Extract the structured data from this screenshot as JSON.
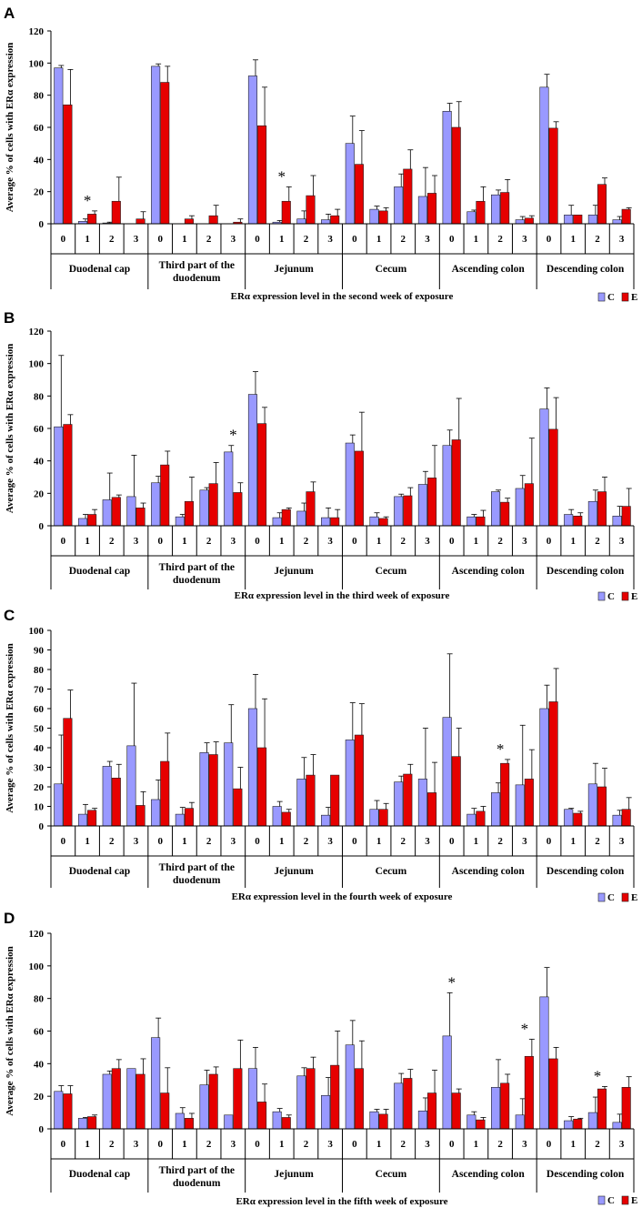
{
  "series_meta": [
    {
      "key": "C",
      "label": "C",
      "color": "#9999ff"
    },
    {
      "key": "E",
      "label": "E",
      "color": "#e60000"
    }
  ],
  "y_axis_title": "Average % of cells with ERα expression",
  "levels": [
    "0",
    "1",
    "2",
    "3"
  ],
  "regions": [
    [
      "Duodenal cap"
    ],
    [
      "Third part of the",
      "duodenum"
    ],
    [
      "Jejunum"
    ],
    [
      "Cecum"
    ],
    [
      "Ascending colon"
    ],
    [
      "Descending colon"
    ]
  ],
  "chart_data": [
    {
      "type": "bar",
      "panel": "A",
      "xlabel": "ERα expression level in the second week of exposure",
      "ylim": [
        0,
        120
      ],
      "yticks": [
        0,
        20,
        40,
        60,
        80,
        100,
        120
      ],
      "categories": [
        "0",
        "1",
        "2",
        "3",
        "0",
        "1",
        "2",
        "3",
        "0",
        "1",
        "2",
        "3",
        "0",
        "1",
        "2",
        "3",
        "0",
        "1",
        "2",
        "3",
        "0",
        "1",
        "2",
        "3"
      ],
      "series": [
        {
          "name": "C",
          "values": [
            97,
            1.5,
            0.5,
            0,
            98,
            0,
            0,
            0,
            92,
            1,
            3,
            2.5,
            50,
            9,
            23,
            17,
            70,
            7.5,
            18,
            2.5,
            85,
            5.5,
            5.5,
            2.5
          ],
          "errors": [
            1.5,
            1.5,
            0.5,
            0,
            1.5,
            0,
            0,
            0,
            10,
            1,
            5,
            3.5,
            17,
            2,
            8,
            18,
            5,
            1,
            3,
            2,
            8,
            6,
            6,
            2
          ]
        },
        {
          "name": "E",
          "values": [
            74,
            6,
            14,
            3,
            88,
            3,
            5,
            1,
            61,
            14,
            17.5,
            5,
            37,
            8,
            34,
            19,
            60,
            14,
            19.5,
            3.5,
            59.5,
            5.5,
            24.5,
            9
          ],
          "errors": [
            22,
            2,
            15,
            4.5,
            10,
            2,
            6.5,
            2,
            24,
            9,
            12.5,
            4,
            21,
            2,
            12,
            11,
            16,
            9,
            8,
            1.5,
            4,
            0,
            4,
            1
          ]
        }
      ],
      "annotations": [
        {
          "text": "*",
          "category_index": 1
        },
        {
          "text": "*",
          "category_index": 9
        }
      ]
    },
    {
      "type": "bar",
      "panel": "B",
      "xlabel": "ERα expression level in the third week of exposure",
      "ylim": [
        0,
        120
      ],
      "yticks": [
        0,
        20,
        40,
        60,
        80,
        100,
        120
      ],
      "categories": [
        "0",
        "1",
        "2",
        "3",
        "0",
        "1",
        "2",
        "3",
        "0",
        "1",
        "2",
        "3",
        "0",
        "1",
        "2",
        "3",
        "0",
        "1",
        "2",
        "3",
        "0",
        "1",
        "2",
        "3"
      ],
      "series": [
        {
          "name": "C",
          "values": [
            61,
            4.5,
            16,
            18,
            26.5,
            5.5,
            22,
            45.5,
            81,
            5,
            9,
            5,
            51,
            5.5,
            18,
            25.5,
            49.5,
            5.5,
            21,
            23,
            72,
            7,
            15,
            6
          ],
          "errors": [
            44,
            2.5,
            16.5,
            25.5,
            4,
            1.5,
            1.5,
            4,
            14,
            3,
            5,
            6,
            5,
            2.5,
            1.5,
            8,
            9.5,
            1.5,
            1,
            8,
            13,
            3,
            7,
            6
          ]
        },
        {
          "name": "E",
          "values": [
            62.5,
            7,
            17.5,
            11,
            37.5,
            15,
            26,
            20.5,
            63,
            10,
            21,
            5,
            46,
            4.5,
            18.5,
            29.5,
            53,
            5.5,
            14.5,
            26,
            59.5,
            6,
            21,
            12
          ],
          "errors": [
            6,
            3,
            1.5,
            3,
            8.5,
            15,
            13,
            6,
            10,
            1,
            6,
            5,
            24,
            1,
            5,
            20,
            25.5,
            4,
            2.5,
            28,
            19.5,
            2,
            9,
            11
          ]
        }
      ],
      "annotations": [
        {
          "text": "*",
          "category_index": 7
        }
      ]
    },
    {
      "type": "bar",
      "panel": "C",
      "xlabel": "ERα expression level in the fourth week of exposure",
      "ylim": [
        0,
        100
      ],
      "yticks": [
        0,
        10,
        20,
        30,
        40,
        50,
        60,
        70,
        80,
        90,
        100
      ],
      "categories": [
        "0",
        "1",
        "2",
        "3",
        "0",
        "1",
        "2",
        "3",
        "0",
        "1",
        "2",
        "3",
        "0",
        "1",
        "2",
        "3",
        "0",
        "1",
        "2",
        "3",
        "0",
        "1",
        "2",
        "3"
      ],
      "series": [
        {
          "name": "C",
          "values": [
            21.5,
            6,
            30.5,
            41,
            13.5,
            6,
            37.5,
            42.5,
            60,
            10,
            24,
            5.5,
            44,
            8.5,
            22.5,
            24,
            55.5,
            6,
            17,
            21,
            60,
            8.5,
            21.5,
            5.5
          ],
          "errors": [
            25,
            5,
            2.5,
            32,
            10,
            3.5,
            5,
            19.5,
            17.5,
            2.5,
            11,
            4,
            19,
            4.5,
            3,
            26,
            32.5,
            3,
            5,
            30.5,
            12,
            0.5,
            10.5,
            2.5
          ]
        },
        {
          "name": "E",
          "values": [
            55,
            8,
            24.5,
            10.5,
            33,
            9,
            36.5,
            19,
            40,
            7,
            26,
            26,
            46.5,
            8.5,
            26.5,
            17,
            35.5,
            7.5,
            32,
            24,
            63.5,
            6.5,
            20,
            8.5
          ],
          "errors": [
            14.5,
            1,
            7,
            7,
            14.5,
            3,
            6.5,
            11,
            25,
            1.5,
            10.5,
            0,
            16,
            3,
            5,
            15.5,
            14.5,
            2.5,
            2,
            15,
            17,
            1,
            9.5,
            6
          ]
        }
      ],
      "annotations": [
        {
          "text": "*",
          "category_index": 18
        }
      ]
    },
    {
      "type": "bar",
      "panel": "D",
      "xlabel": "ERα expression level in the fifth week of exposure",
      "ylim": [
        0,
        120
      ],
      "yticks": [
        0,
        20,
        40,
        60,
        80,
        100,
        120
      ],
      "categories": [
        "0",
        "1",
        "2",
        "3",
        "0",
        "1",
        "2",
        "3",
        "0",
        "1",
        "2",
        "3",
        "0",
        "1",
        "2",
        "3",
        "0",
        "1",
        "2",
        "3",
        "0",
        "1",
        "2",
        "3"
      ],
      "series": [
        {
          "name": "C",
          "values": [
            23,
            6.5,
            33.5,
            37,
            56,
            9.5,
            27,
            8.5,
            37,
            10.5,
            32.5,
            20.5,
            51.5,
            10.5,
            28,
            11,
            57,
            8.5,
            25.5,
            8.5,
            81,
            5,
            10,
            4
          ],
          "errors": [
            3.5,
            0.5,
            2,
            0,
            12,
            3.5,
            9,
            0,
            13,
            2,
            5,
            11,
            15,
            1.5,
            6,
            8,
            26.5,
            2,
            17,
            10,
            18,
            2.5,
            9.5,
            5
          ]
        },
        {
          "name": "E",
          "values": [
            21.5,
            7.5,
            37,
            33.5,
            22,
            6.5,
            33.5,
            37,
            16.5,
            7,
            37,
            39,
            37,
            9,
            31,
            22,
            22,
            5.5,
            28,
            44.5,
            43,
            6,
            24.5,
            25.5
          ],
          "errors": [
            5,
            1,
            5.5,
            9.5,
            15.5,
            3,
            4.5,
            17.5,
            11,
            1.5,
            7,
            21,
            17,
            3,
            5.5,
            14,
            2.5,
            1.5,
            5.5,
            10.5,
            7,
            0.5,
            1.5,
            6.5
          ]
        }
      ],
      "annotations": [
        {
          "text": "*",
          "category_index": 16
        },
        {
          "text": "*",
          "category_index": 19
        },
        {
          "text": "*",
          "category_index": 22
        }
      ]
    }
  ]
}
